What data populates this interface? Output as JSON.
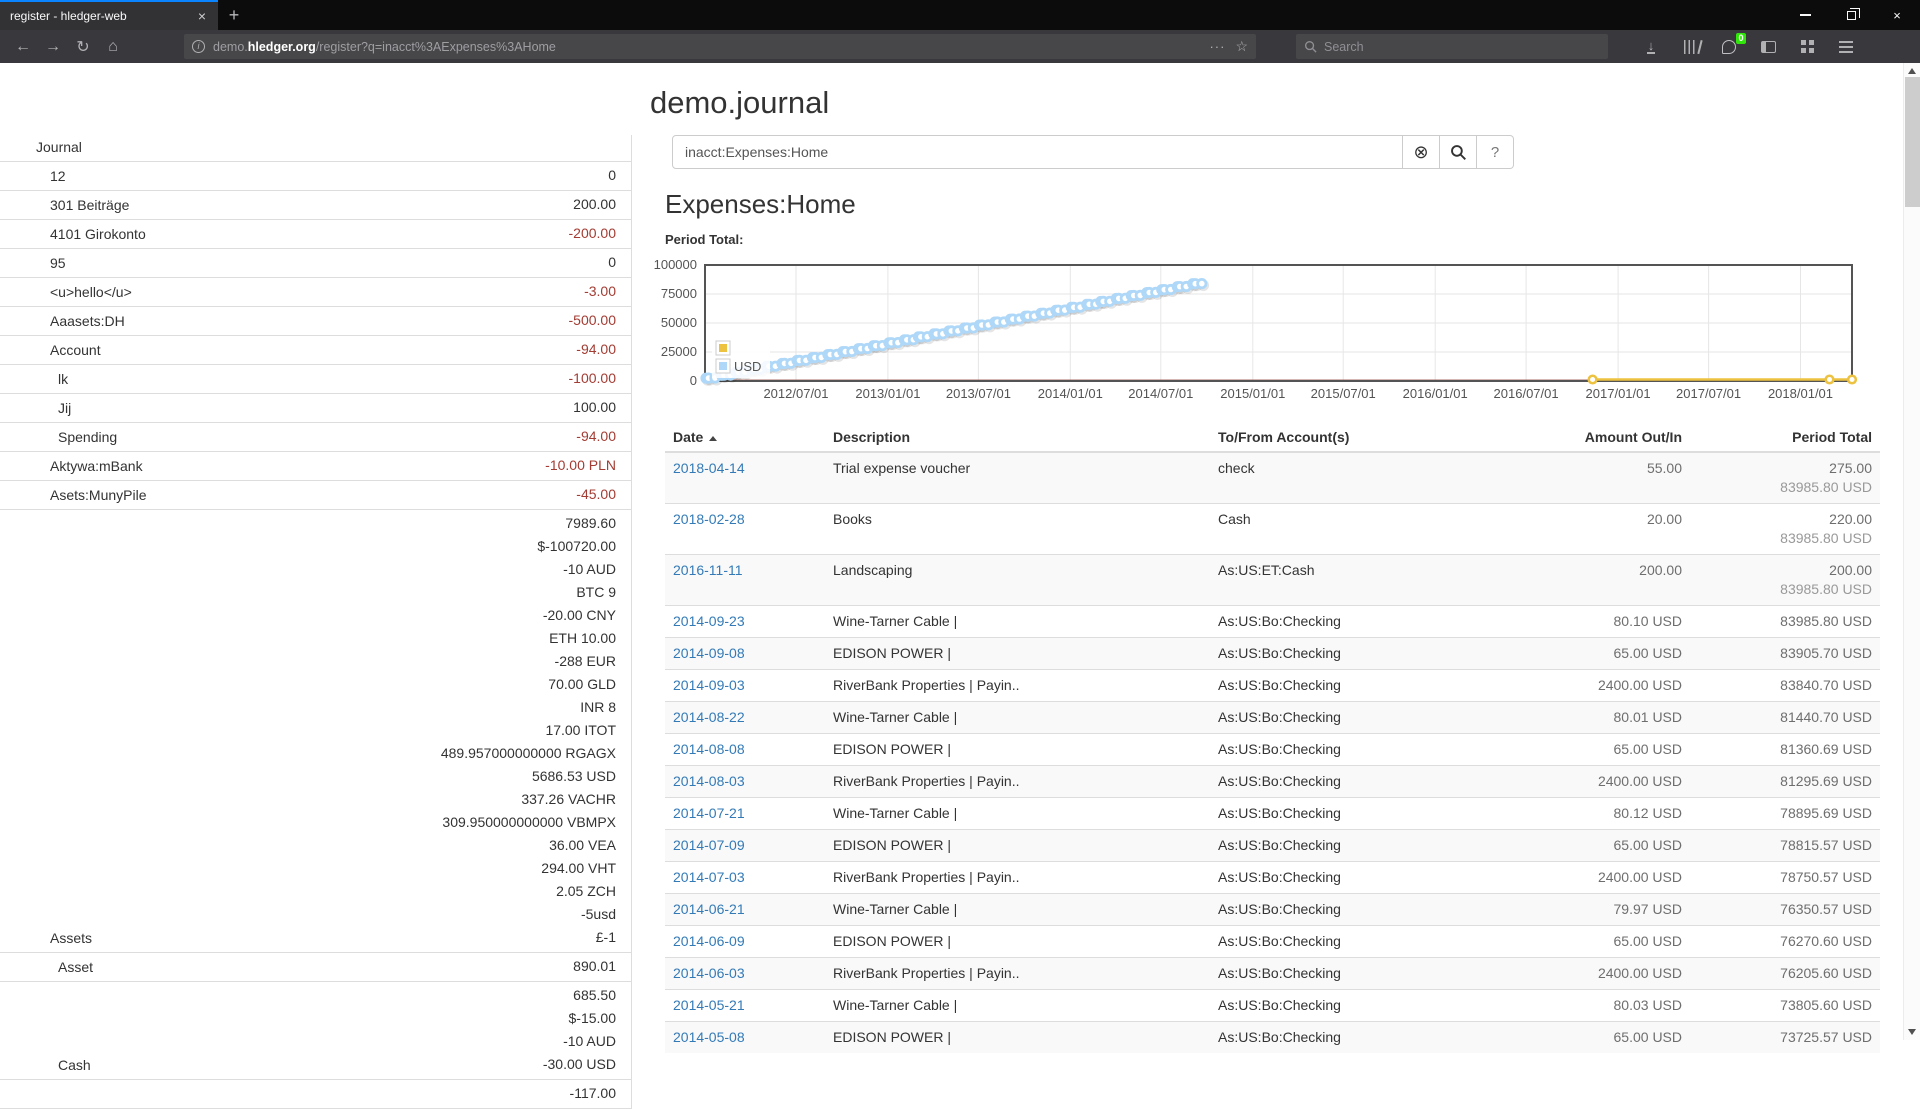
{
  "browser": {
    "tab": {
      "title": "register - hledger-web",
      "close": "×"
    },
    "new_tab": "+",
    "nav": {
      "back": "←",
      "forward": "→",
      "reload": "↻",
      "home": "⌂"
    },
    "url": {
      "prefix": "demo.",
      "domain": "hledger.org",
      "path": "/register?q=inacct%3AExpenses%3AHome"
    },
    "url_actions": {
      "dots": "···",
      "star": "☆"
    },
    "search_placeholder": "Search",
    "extension_badge": "0",
    "window_close": "×"
  },
  "page": {
    "title": "demo.journal",
    "search": {
      "value": "inacct:Expenses:Home",
      "clear": "⊗",
      "help": "?"
    },
    "heading": "Expenses:Home",
    "period_total_label": "Period Total:",
    "sidebar": {
      "rows": [
        {
          "name": "Journal",
          "depth": 0,
          "lines": []
        },
        {
          "name": "12",
          "depth": 1,
          "lines": [
            {
              "t": "0"
            }
          ]
        },
        {
          "name": "301 Beiträge",
          "depth": 1,
          "lines": [
            {
              "t": "200.00"
            }
          ]
        },
        {
          "name": "4101 Girokonto",
          "depth": 1,
          "lines": [
            {
              "t": "-200.00",
              "neg": true
            }
          ]
        },
        {
          "name": "95",
          "depth": 1,
          "lines": [
            {
              "t": "0"
            }
          ]
        },
        {
          "name": "<u>hello</u>",
          "depth": 1,
          "lines": [
            {
              "t": "-3.00",
              "neg": true
            }
          ]
        },
        {
          "name": "Aaasets:DH",
          "depth": 1,
          "lines": [
            {
              "t": "-500.00",
              "neg": true
            }
          ]
        },
        {
          "name": "Account",
          "depth": 1,
          "lines": [
            {
              "t": "-94.00",
              "neg": true
            }
          ]
        },
        {
          "name": "lk",
          "depth": 2,
          "lines": [
            {
              "t": "-100.00",
              "neg": true
            }
          ]
        },
        {
          "name": "Jij",
          "depth": 2,
          "lines": [
            {
              "t": "100.00"
            }
          ]
        },
        {
          "name": "Spending",
          "depth": 2,
          "lines": [
            {
              "t": "-94.00",
              "neg": true
            }
          ]
        },
        {
          "name": "Aktywa:mBank",
          "depth": 1,
          "lines": [
            {
              "t": "-10.00 PLN",
              "neg": true
            }
          ]
        },
        {
          "name": "Asets:MunyPile",
          "depth": 1,
          "lines": [
            {
              "t": "-45.00",
              "neg": true
            }
          ]
        },
        {
          "name": "Assets",
          "depth": 1,
          "lines": [
            {
              "t": "7989.60"
            },
            {
              "t": "$-100720.00"
            },
            {
              "t": "-10 AUD"
            },
            {
              "t": "BTC 9"
            },
            {
              "t": "-20.00 CNY"
            },
            {
              "t": "ETH 10.00"
            },
            {
              "t": "-288 EUR"
            },
            {
              "t": "70.00 GLD"
            },
            {
              "t": "INR 8"
            },
            {
              "t": "17.00 ITOT"
            },
            {
              "t": "489.957000000000 RGAGX"
            },
            {
              "t": "5686.53 USD"
            },
            {
              "t": "337.26 VACHR"
            },
            {
              "t": "309.950000000000 VBMPX"
            },
            {
              "t": "36.00 VEA"
            },
            {
              "t": "294.00 VHT"
            },
            {
              "t": "2.05 ZCH"
            },
            {
              "t": "-5usd"
            },
            {
              "t": "£-1"
            }
          ]
        },
        {
          "name": "Asset",
          "depth": 2,
          "lines": [
            {
              "t": "890.01"
            }
          ]
        },
        {
          "name": "Cash",
          "depth": 2,
          "lines": [
            {
              "t": "685.50"
            },
            {
              "t": "$-15.00"
            },
            {
              "t": "-10 AUD"
            },
            {
              "t": "-30.00 USD"
            }
          ]
        },
        {
          "name": "",
          "depth": 2,
          "lines": [
            {
              "t": "-117.00"
            }
          ]
        }
      ]
    },
    "register": {
      "columns": [
        "Date",
        "Description",
        "To/From Account(s)",
        "Amount Out/In",
        "Period Total"
      ],
      "rows": [
        {
          "date": "2018-04-14",
          "description": "Trial expense voucher",
          "accounts": "check",
          "amount": "55.00",
          "totals": [
            "275.00",
            "83985.80 USD"
          ]
        },
        {
          "date": "2018-02-28",
          "description": "Books",
          "accounts": "Cash",
          "amount": "20.00",
          "totals": [
            "220.00",
            "83985.80 USD"
          ]
        },
        {
          "date": "2016-11-11",
          "description": "Landscaping",
          "accounts": "As:US:ET:Cash",
          "amount": "200.00",
          "totals": [
            "200.00",
            "83985.80 USD"
          ]
        },
        {
          "date": "2014-09-23",
          "description": "Wine-Tarner Cable |",
          "accounts": "As:US:Bo:Checking",
          "amount": "80.10 USD",
          "totals": [
            "83985.80 USD"
          ]
        },
        {
          "date": "2014-09-08",
          "description": "EDISON POWER |",
          "accounts": "As:US:Bo:Checking",
          "amount": "65.00 USD",
          "totals": [
            "83905.70 USD"
          ]
        },
        {
          "date": "2014-09-03",
          "description": "RiverBank Properties | Payin..",
          "accounts": "As:US:Bo:Checking",
          "amount": "2400.00 USD",
          "totals": [
            "83840.70 USD"
          ]
        },
        {
          "date": "2014-08-22",
          "description": "Wine-Tarner Cable |",
          "accounts": "As:US:Bo:Checking",
          "amount": "80.01 USD",
          "totals": [
            "81440.70 USD"
          ]
        },
        {
          "date": "2014-08-08",
          "description": "EDISON POWER |",
          "accounts": "As:US:Bo:Checking",
          "amount": "65.00 USD",
          "totals": [
            "81360.69 USD"
          ]
        },
        {
          "date": "2014-08-03",
          "description": "RiverBank Properties | Payin..",
          "accounts": "As:US:Bo:Checking",
          "amount": "2400.00 USD",
          "totals": [
            "81295.69 USD"
          ]
        },
        {
          "date": "2014-07-21",
          "description": "Wine-Tarner Cable |",
          "accounts": "As:US:Bo:Checking",
          "amount": "80.12 USD",
          "totals": [
            "78895.69 USD"
          ]
        },
        {
          "date": "2014-07-09",
          "description": "EDISON POWER |",
          "accounts": "As:US:Bo:Checking",
          "amount": "65.00 USD",
          "totals": [
            "78815.57 USD"
          ]
        },
        {
          "date": "2014-07-03",
          "description": "RiverBank Properties | Payin..",
          "accounts": "As:US:Bo:Checking",
          "amount": "2400.00 USD",
          "totals": [
            "78750.57 USD"
          ]
        },
        {
          "date": "2014-06-21",
          "description": "Wine-Tarner Cable |",
          "accounts": "As:US:Bo:Checking",
          "amount": "79.97 USD",
          "totals": [
            "76350.57 USD"
          ]
        },
        {
          "date": "2014-06-09",
          "description": "EDISON POWER |",
          "accounts": "As:US:Bo:Checking",
          "amount": "65.00 USD",
          "totals": [
            "76270.60 USD"
          ]
        },
        {
          "date": "2014-06-03",
          "description": "RiverBank Properties | Payin..",
          "accounts": "As:US:Bo:Checking",
          "amount": "2400.00 USD",
          "totals": [
            "76205.60 USD"
          ]
        },
        {
          "date": "2014-05-21",
          "description": "Wine-Tarner Cable |",
          "accounts": "As:US:Bo:Checking",
          "amount": "80.03 USD",
          "totals": [
            "73805.60 USD"
          ]
        },
        {
          "date": "2014-05-08",
          "description": "EDISON POWER |",
          "accounts": "As:US:Bo:Checking",
          "amount": "65.00 USD",
          "totals": [
            "73725.57 USD"
          ]
        }
      ]
    }
  },
  "chart_data": {
    "type": "line",
    "title": "Period Total:",
    "x_axis": {
      "min": "2012-01-01",
      "max": "2018-04-14",
      "ticks": [
        {
          "date": "2012-07-01",
          "label": "2012/07/01"
        },
        {
          "date": "2013-01-01",
          "label": "2013/01/01"
        },
        {
          "date": "2013-07-01",
          "label": "2013/07/01"
        },
        {
          "date": "2014-01-01",
          "label": "2014/01/01"
        },
        {
          "date": "2014-07-01",
          "label": "2014/07/01"
        },
        {
          "date": "2015-01-01",
          "label": "2015/01/01"
        },
        {
          "date": "2015-07-01",
          "label": "2015/07/01"
        },
        {
          "date": "2016-01-01",
          "label": "2016/01/01"
        },
        {
          "date": "2016-07-01",
          "label": "2016/07/01"
        },
        {
          "date": "2017-01-01",
          "label": "2017/01/01"
        },
        {
          "date": "2017-07-01",
          "label": "2017/07/01"
        },
        {
          "date": "2018-01-01",
          "label": "2018/01/01"
        }
      ]
    },
    "y_axis": {
      "min": 0,
      "max": 100000,
      "tick_labels": [
        "0",
        "25000",
        "50000",
        "75000",
        "100000"
      ]
    },
    "legend": [
      {
        "label": "",
        "color": "#edc240"
      },
      {
        "label": "USD",
        "color": "#afd8f8"
      }
    ],
    "series": [
      {
        "name": "",
        "color": "#edc240",
        "points": [
          [
            "2016-11-11",
            200
          ],
          [
            "2018-02-28",
            220
          ],
          [
            "2018-04-14",
            275
          ]
        ]
      },
      {
        "name": "USD",
        "color": "#afd8f8",
        "generated": {
          "description": "cumulative USD expense total, three transactions per month",
          "start_month": "2012-01",
          "months": 33,
          "monthly_transactions": [
            [
              3,
              2400.0
            ],
            [
              8,
              65.0
            ],
            [
              21,
              80.0
            ]
          ],
          "end_total": 83985.8
        }
      }
    ]
  }
}
